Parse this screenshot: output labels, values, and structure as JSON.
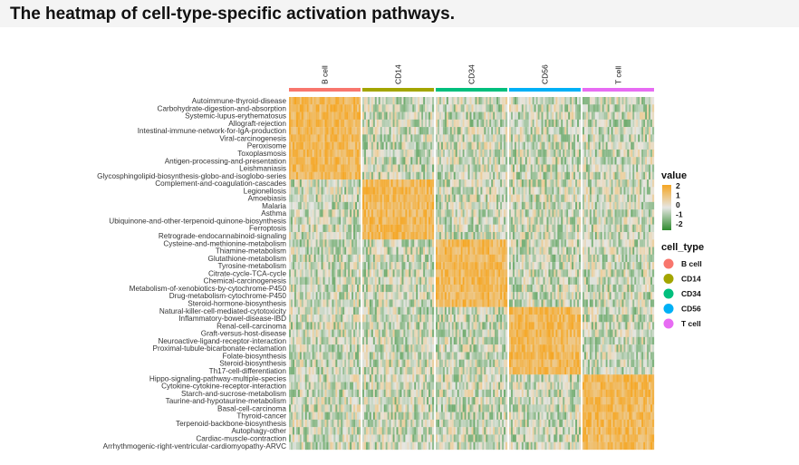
{
  "page": {
    "title": "The heatmap of cell-type-specific activation pathways."
  },
  "chart_data": {
    "type": "heatmap",
    "title": "The heatmap of cell-type-specific activation pathways.",
    "column_groups": [
      "B cell",
      "CD14",
      "CD34",
      "CD56",
      "T cell"
    ],
    "group_colors": [
      "#F8766D",
      "#A3A500",
      "#00BF7D",
      "#00B0F6",
      "#E76BF3"
    ],
    "rows": [
      "Autoimmune-thyroid-disease",
      "Carbohydrate-digestion-and-absorption",
      "Systemic-lupus-erythematosus",
      "Allograft-rejection",
      "Intestinal-immune-network-for-IgA-production",
      "Viral-carcinogenesis",
      "Peroxisome",
      "Toxoplasmosis",
      "Antigen-processing-and-presentation",
      "Leishmaniasis",
      "Glycosphingolipid-biosynthesis-globo-and-isoglobo-series",
      "Complement-and-coagulation-cascades",
      "Legionellosis",
      "Amoebiasis",
      "Malaria",
      "Asthma",
      "Ubiquinone-and-other-terpenoid-quinone-biosynthesis",
      "Ferroptosis",
      "Retrograde-endocannabinoid-signaling",
      "Cysteine-and-methionine-metabolism",
      "Thiamine-metabolism",
      "Glutathione-metabolism",
      "Tyrosine-metabolism",
      "Citrate-cycle-TCA-cycle",
      "Chemical-carcinogenesis",
      "Metabolism-of-xenobiotics-by-cytochrome-P450",
      "Drug-metabolism-cytochrome-P450",
      "Steroid-hormone-biosynthesis",
      "Natural-killer-cell-mediated-cytotoxicity",
      "Inflammatory-bowel-disease-IBD",
      "Renal-cell-carcinoma",
      "Graft-versus-host-disease",
      "Neuroactive-ligand-receptor-interaction",
      "Proximal-tubule-bicarbonate-reclamation",
      "Folate-biosynthesis",
      "Steroid-biosynthesis",
      "Th17-cell-differentiation",
      "Hippo-signaling-pathway-multiple-species",
      "Cytokine-cytokine-receptor-interaction",
      "Starch-and-sucrose-metabolism",
      "Taurine-and-hypotaurine-metabolism",
      "Basal-cell-carcinoma",
      "Thyroid-cancer",
      "Terpenoid-backbone-biosynthesis",
      "Autophagy-other",
      "Cardiac-muscle-contraction",
      "Arrhythmogenic-right-ventricular-cardiomyopathy-ARVC"
    ],
    "row_high_group": [
      0,
      0,
      0,
      0,
      0,
      0,
      0,
      0,
      0,
      0,
      0,
      1,
      1,
      1,
      1,
      1,
      1,
      1,
      1,
      2,
      2,
      2,
      2,
      2,
      2,
      2,
      2,
      2,
      3,
      3,
      3,
      3,
      3,
      3,
      3,
      3,
      3,
      4,
      4,
      4,
      4,
      4,
      4,
      4,
      4,
      4,
      4
    ],
    "cells_per_group": 40,
    "value_range": [
      -2.5,
      2.5
    ],
    "colorscale": {
      "low": "#2e8b2e",
      "mid": "#e6e6e3",
      "high": "#f5a623"
    },
    "legend": {
      "value_title": "value",
      "value_ticks": [
        "2",
        "1",
        "0",
        "-1",
        "-2"
      ],
      "celltype_title": "cell_type",
      "celltype_labels": [
        "B cell",
        "CD14",
        "CD34",
        "CD56",
        "T cell"
      ]
    }
  }
}
